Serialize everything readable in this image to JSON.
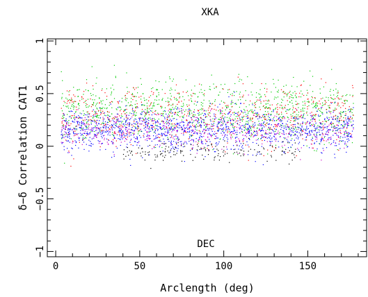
{
  "chart_data": {
    "type": "scatter",
    "title": "XKA",
    "xlabel": "Arclength (deg)",
    "ylabel": "δ−δ Correlation CAT1",
    "annotation": "DEC",
    "xlim": [
      -5,
      185
    ],
    "ylim": [
      -1.05,
      1.02
    ],
    "x_ticks": [
      0,
      50,
      100,
      150
    ],
    "y_ticks": [
      -1,
      -0.5,
      0,
      0.5,
      1
    ],
    "x_tick_labels": [
      "0",
      "50",
      "100",
      "150"
    ],
    "y_tick_labels": [
      "−1",
      "−0.5",
      "0",
      "0.5",
      "1"
    ],
    "grid": false,
    "series": [
      {
        "color": "#00cc00",
        "x_range": [
          3,
          177
        ],
        "center_y": 0.33,
        "spread_y": 0.14
      },
      {
        "color": "#ff0000",
        "x_range": [
          3,
          177
        ],
        "center_y": 0.28,
        "spread_y": 0.14
      },
      {
        "color": "#0000ff",
        "x_range": [
          3,
          177
        ],
        "center_y": 0.16,
        "spread_y": 0.1
      },
      {
        "color": "#cc00cc",
        "x_range": [
          3,
          177
        ],
        "center_y": 0.15,
        "spread_y": 0.09
      },
      {
        "color": "#000000",
        "x_range": [
          40,
          145
        ],
        "center_y": -0.05,
        "spread_y": 0.05
      }
    ],
    "colors": {
      "annotation": "#ff0000"
    }
  }
}
